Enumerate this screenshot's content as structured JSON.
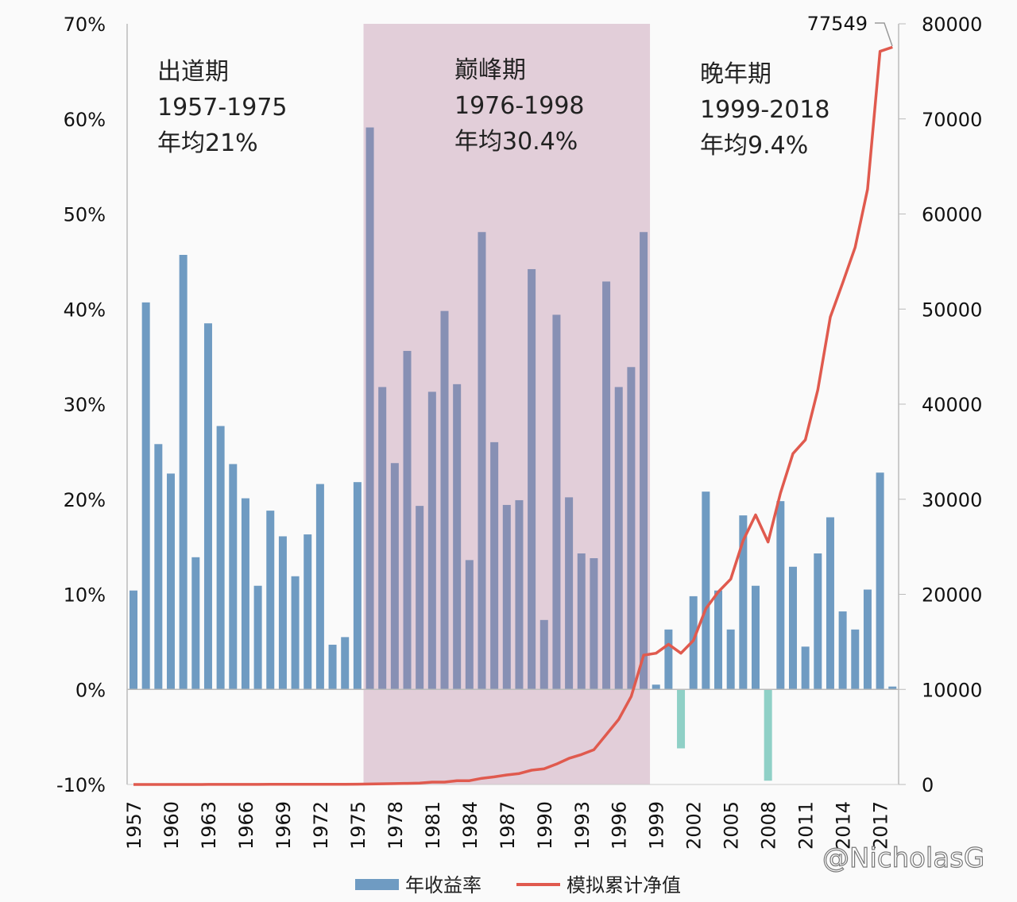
{
  "chart_data": {
    "type": "bar+line",
    "title": "",
    "categories": [
      1957,
      1958,
      1959,
      1960,
      1961,
      1962,
      1963,
      1964,
      1965,
      1966,
      1967,
      1968,
      1969,
      1970,
      1971,
      1972,
      1973,
      1974,
      1975,
      1976,
      1977,
      1978,
      1979,
      1980,
      1981,
      1982,
      1983,
      1984,
      1985,
      1986,
      1987,
      1988,
      1989,
      1990,
      1991,
      1992,
      1993,
      1994,
      1995,
      1996,
      1997,
      1998,
      1999,
      2000,
      2001,
      2002,
      2003,
      2004,
      2005,
      2006,
      2007,
      2008,
      2009,
      2010,
      2011,
      2012,
      2013,
      2014,
      2015,
      2016,
      2017,
      2018
    ],
    "x_tick_labels": [
      "1957",
      "1960",
      "1963",
      "1966",
      "1969",
      "1972",
      "1975",
      "1978",
      "1981",
      "1984",
      "1987",
      "1990",
      "1993",
      "1996",
      "1999",
      "2002",
      "2005",
      "2008",
      "2011",
      "2014",
      "2017"
    ],
    "series": [
      {
        "name": "年收益率",
        "type": "bar",
        "axis": "left",
        "unit": "%",
        "values": [
          10.4,
          40.7,
          25.8,
          22.7,
          45.7,
          13.9,
          38.5,
          27.7,
          23.7,
          20.1,
          10.9,
          18.8,
          16.1,
          11.9,
          16.3,
          21.6,
          4.7,
          5.5,
          21.8,
          59.1,
          31.8,
          23.8,
          35.6,
          19.3,
          31.3,
          39.8,
          32.1,
          13.6,
          48.1,
          26.0,
          19.4,
          19.9,
          44.2,
          7.3,
          39.4,
          20.2,
          14.3,
          13.8,
          42.9,
          31.8,
          33.9,
          48.1,
          0.5,
          6.3,
          -6.2,
          9.8,
          20.8,
          10.4,
          6.3,
          18.3,
          10.9,
          -9.6,
          19.8,
          12.9,
          4.5,
          14.3,
          18.1,
          8.2,
          6.3,
          10.5,
          22.8,
          0.3
        ]
      },
      {
        "name": "模拟累计净值",
        "type": "line",
        "axis": "right",
        "values": [
          1,
          2,
          2,
          3,
          4,
          4,
          6,
          7,
          9,
          11,
          12,
          14,
          16,
          18,
          21,
          25,
          27,
          28,
          34,
          54,
          71,
          88,
          119,
          142,
          250,
          250,
          400,
          400,
          650,
          800,
          1000,
          1150,
          1500,
          1650,
          2150,
          2750,
          3150,
          3650,
          5250,
          6850,
          9250,
          13600,
          13800,
          14750,
          13800,
          15150,
          18500,
          20250,
          21600,
          25650,
          28350,
          25500,
          30650,
          34800,
          36250,
          41500,
          49150,
          52750,
          56500,
          62600,
          77100,
          77549
        ]
      }
    ],
    "left_axis": {
      "ylim": [
        -10,
        70
      ],
      "ticks": [
        "-10%",
        "0%",
        "10%",
        "20%",
        "30%",
        "40%",
        "50%",
        "60%",
        "70%"
      ]
    },
    "right_axis": {
      "ylim": [
        0,
        80000
      ],
      "ticks": [
        "0",
        "10000",
        "20000",
        "30000",
        "40000",
        "50000",
        "60000",
        "70000",
        "80000"
      ]
    },
    "highlight_range": [
      1976,
      1998
    ],
    "annotations": [
      {
        "lines": [
          "出道期",
          "1957-1975",
          "年均21%"
        ]
      },
      {
        "lines": [
          "巅峰期",
          "1976-1998",
          "年均30.4%"
        ]
      },
      {
        "lines": [
          "晚年期",
          "1999-2018",
          "年均9.4%"
        ]
      }
    ],
    "end_label": "77549",
    "legend": {
      "position": "bottom",
      "entries": [
        "年收益率",
        "模拟累计净值"
      ]
    },
    "colors": {
      "bar": "#6f9bc2",
      "bar_negative": "#8fd0c6",
      "line": "#e05a4e",
      "highlight": "#b57c9c"
    },
    "watermark": "@NicholasG"
  }
}
